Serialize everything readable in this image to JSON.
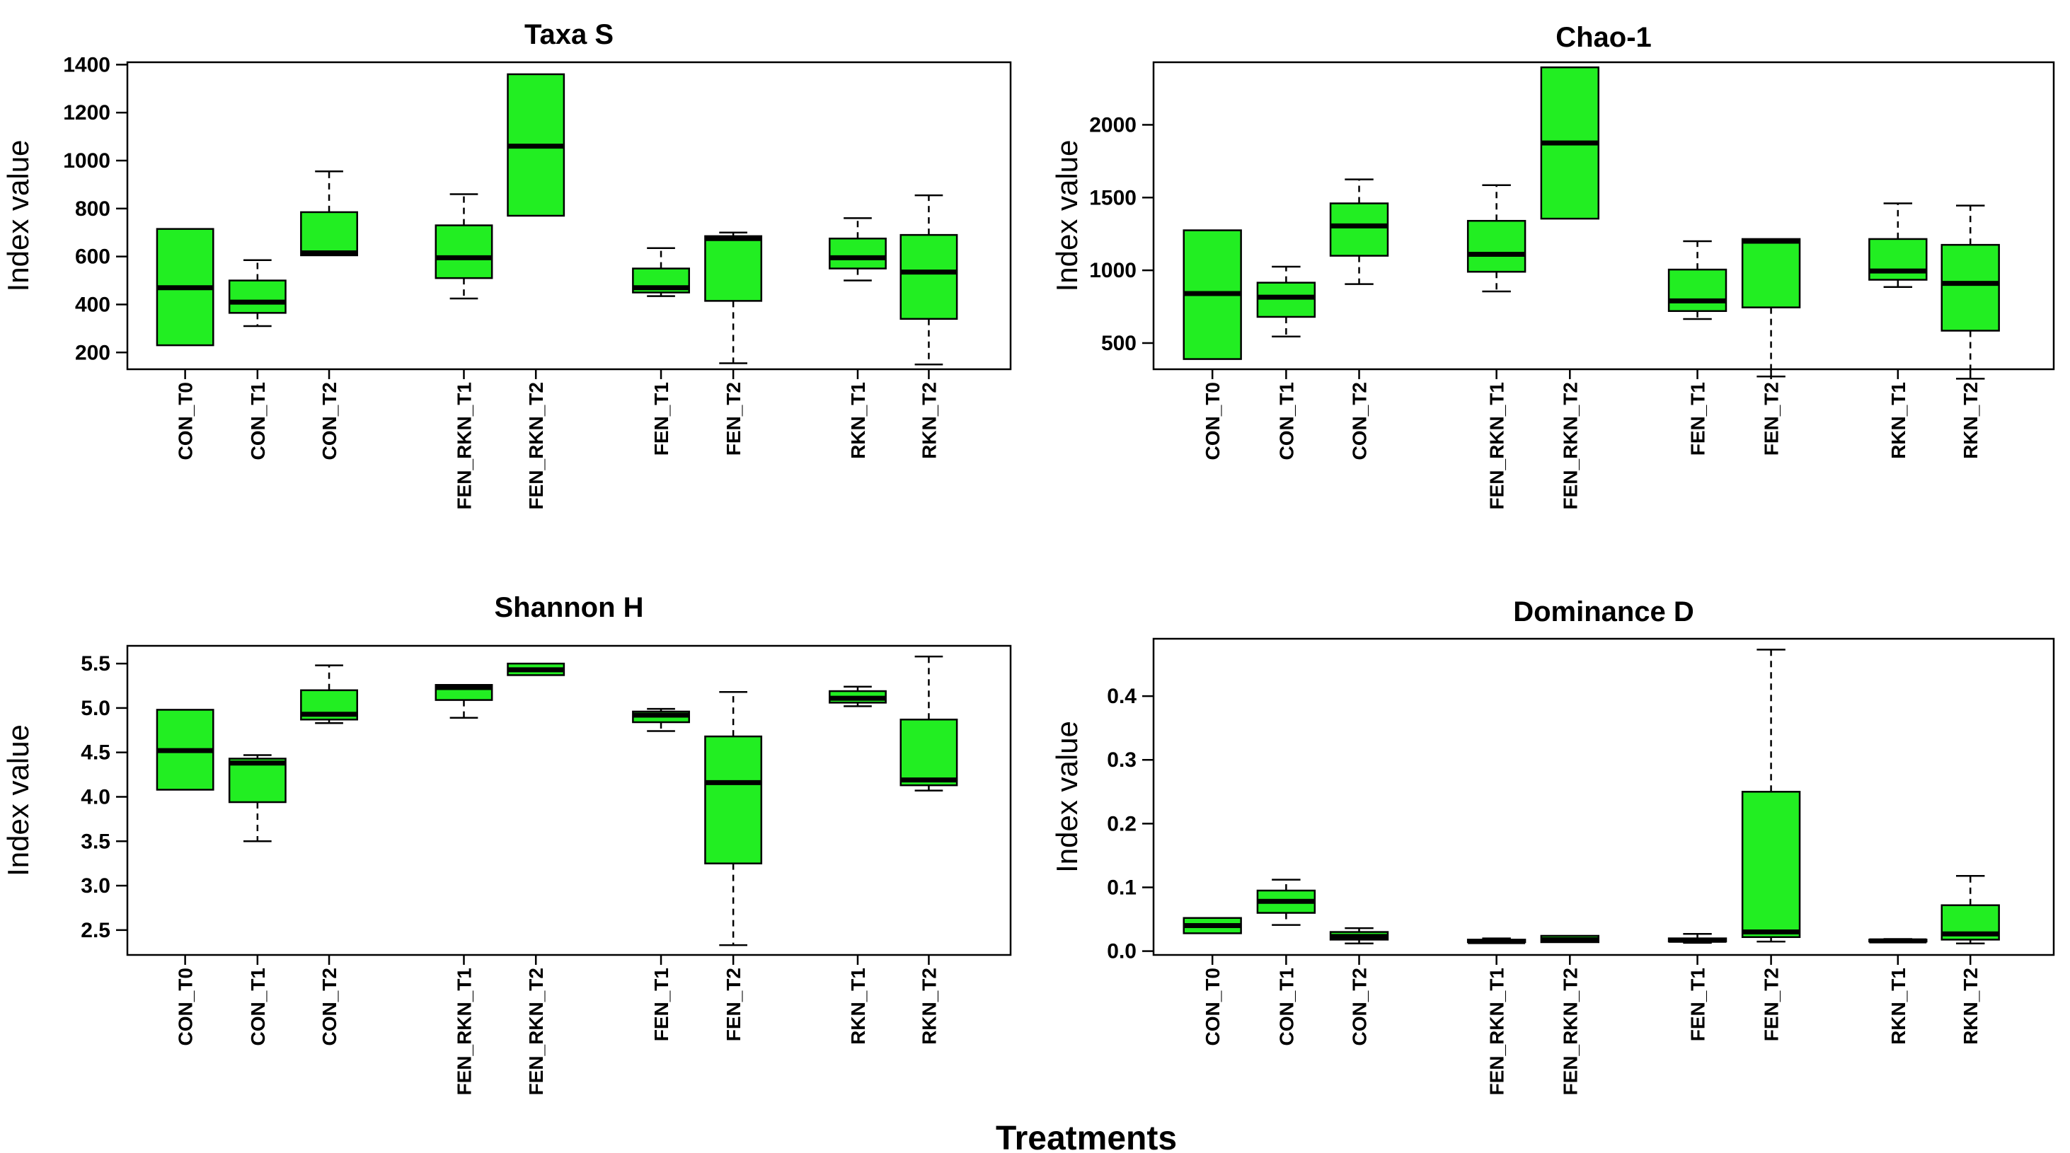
{
  "figure": {
    "xlabel": "Treatments"
  },
  "chart_data": [
    {
      "type": "boxplot",
      "title": "Taxa  S",
      "ylabel": "Index value",
      "xlabel": "Treatments",
      "ylim": [
        130,
        1410
      ],
      "yticks": [
        200,
        400,
        600,
        800,
        1000,
        1200,
        1400
      ],
      "categories": [
        "CON_T0",
        "CON_T1",
        "CON_T2",
        "FEN_RKN_T1",
        "FEN_RKN_T2",
        "FEN_T1",
        "FEN_T2",
        "RKN_T1",
        "RKN_T2"
      ],
      "boxes": [
        {
          "min": 230,
          "q1": 230,
          "median": 470,
          "q3": 715,
          "max": 715
        },
        {
          "min": 310,
          "q1": 365,
          "median": 410,
          "q3": 500,
          "max": 585
        },
        {
          "min": 605,
          "q1": 605,
          "median": 615,
          "q3": 785,
          "max": 955
        },
        {
          "min": 425,
          "q1": 510,
          "median": 595,
          "q3": 730,
          "max": 860
        },
        {
          "min": 770,
          "q1": 770,
          "median": 1060,
          "q3": 1360,
          "max": 1360
        },
        {
          "min": 435,
          "q1": 450,
          "median": 470,
          "q3": 550,
          "max": 635
        },
        {
          "min": 155,
          "q1": 415,
          "median": 675,
          "q3": 685,
          "max": 700
        },
        {
          "min": 500,
          "q1": 550,
          "median": 595,
          "q3": 675,
          "max": 760
        },
        {
          "min": 150,
          "q1": 340,
          "median": 535,
          "q3": 690,
          "max": 855
        }
      ]
    },
    {
      "type": "boxplot",
      "title": "Chao-1",
      "ylabel": "Index value",
      "xlabel": "Treatments",
      "ylim": [
        320,
        2430
      ],
      "yticks": [
        500,
        1000,
        1500,
        2000
      ],
      "categories": [
        "CON_T0",
        "CON_T1",
        "CON_T2",
        "FEN_RKN_T1",
        "FEN_RKN_T2",
        "FEN_T1",
        "FEN_T2",
        "RKN_T1",
        "RKN_T2"
      ],
      "boxes": [
        {
          "min": 390,
          "q1": 390,
          "median": 840,
          "q3": 1275,
          "max": 1275
        },
        {
          "min": 545,
          "q1": 680,
          "median": 815,
          "q3": 915,
          "max": 1025
        },
        {
          "min": 905,
          "q1": 1100,
          "median": 1305,
          "q3": 1460,
          "max": 1625
        },
        {
          "min": 855,
          "q1": 990,
          "median": 1110,
          "q3": 1340,
          "max": 1585
        },
        {
          "min": 1355,
          "q1": 1355,
          "median": 1875,
          "q3": 2395,
          "max": 2395
        },
        {
          "min": 665,
          "q1": 720,
          "median": 790,
          "q3": 1005,
          "max": 1200
        },
        {
          "min": 270,
          "q1": 745,
          "median": 1200,
          "q3": 1215,
          "max": 1215
        },
        {
          "min": 885,
          "q1": 935,
          "median": 995,
          "q3": 1215,
          "max": 1460
        },
        {
          "min": 255,
          "q1": 585,
          "median": 910,
          "q3": 1175,
          "max": 1445
        }
      ]
    },
    {
      "type": "boxplot",
      "title": "Shannon H",
      "ylabel": "Index value",
      "xlabel": "Treatments",
      "ylim": [
        2.22,
        5.7
      ],
      "yticks": [
        2.5,
        3.0,
        3.5,
        4.0,
        4.5,
        5.0,
        5.5
      ],
      "yticklabels": [
        "2.5",
        "3.0",
        "3.5",
        "4.0",
        "4.5",
        "5.0",
        "5.5"
      ],
      "categories": [
        "CON_T0",
        "CON_T1",
        "CON_T2",
        "FEN_RKN_T1",
        "FEN_RKN_T2",
        "FEN_T1",
        "FEN_T2",
        "RKN_T1",
        "RKN_T2"
      ],
      "boxes": [
        {
          "min": 4.08,
          "q1": 4.08,
          "median": 4.52,
          "q3": 4.98,
          "max": 4.98
        },
        {
          "min": 3.5,
          "q1": 3.94,
          "median": 4.38,
          "q3": 4.43,
          "max": 4.47
        },
        {
          "min": 4.83,
          "q1": 4.87,
          "median": 4.93,
          "q3": 5.2,
          "max": 5.48
        },
        {
          "min": 4.89,
          "q1": 5.09,
          "median": 5.23,
          "q3": 5.26,
          "max": 5.26
        },
        {
          "min": 5.37,
          "q1": 5.37,
          "median": 5.43,
          "q3": 5.5,
          "max": 5.5
        },
        {
          "min": 4.74,
          "q1": 4.84,
          "median": 4.92,
          "q3": 4.96,
          "max": 4.99
        },
        {
          "min": 2.33,
          "q1": 3.25,
          "median": 4.16,
          "q3": 4.68,
          "max": 5.18
        },
        {
          "min": 5.02,
          "q1": 5.06,
          "median": 5.11,
          "q3": 5.19,
          "max": 5.24
        },
        {
          "min": 4.07,
          "q1": 4.13,
          "median": 4.19,
          "q3": 4.87,
          "max": 5.58
        }
      ]
    },
    {
      "type": "boxplot",
      "title": "Dominance  D",
      "ylabel": "Index value",
      "xlabel": "Treatments",
      "ylim": [
        -0.006,
        0.49
      ],
      "yticks": [
        0.0,
        0.1,
        0.2,
        0.3,
        0.4
      ],
      "yticklabels": [
        "0.0",
        "0.1",
        "0.2",
        "0.3",
        "0.4"
      ],
      "categories": [
        "CON_T0",
        "CON_T1",
        "CON_T2",
        "FEN_RKN_T1",
        "FEN_RKN_T2",
        "FEN_T1",
        "FEN_T2",
        "RKN_T1",
        "RKN_T2"
      ],
      "boxes": [
        {
          "min": 0.028,
          "q1": 0.028,
          "median": 0.04,
          "q3": 0.052,
          "max": 0.052
        },
        {
          "min": 0.041,
          "q1": 0.06,
          "median": 0.078,
          "q3": 0.095,
          "max": 0.112
        },
        {
          "min": 0.012,
          "q1": 0.018,
          "median": 0.023,
          "q3": 0.03,
          "max": 0.036
        },
        {
          "min": 0.013,
          "q1": 0.014,
          "median": 0.015,
          "q3": 0.018,
          "max": 0.02
        },
        {
          "min": 0.014,
          "q1": 0.014,
          "median": 0.018,
          "q3": 0.024,
          "max": 0.024
        },
        {
          "min": 0.013,
          "q1": 0.015,
          "median": 0.017,
          "q3": 0.02,
          "max": 0.027
        },
        {
          "min": 0.015,
          "q1": 0.022,
          "median": 0.03,
          "q3": 0.25,
          "max": 0.473
        },
        {
          "min": 0.014,
          "q1": 0.015,
          "median": 0.016,
          "q3": 0.018,
          "max": 0.019
        },
        {
          "min": 0.012,
          "q1": 0.018,
          "median": 0.027,
          "q3": 0.072,
          "max": 0.118
        }
      ]
    }
  ]
}
